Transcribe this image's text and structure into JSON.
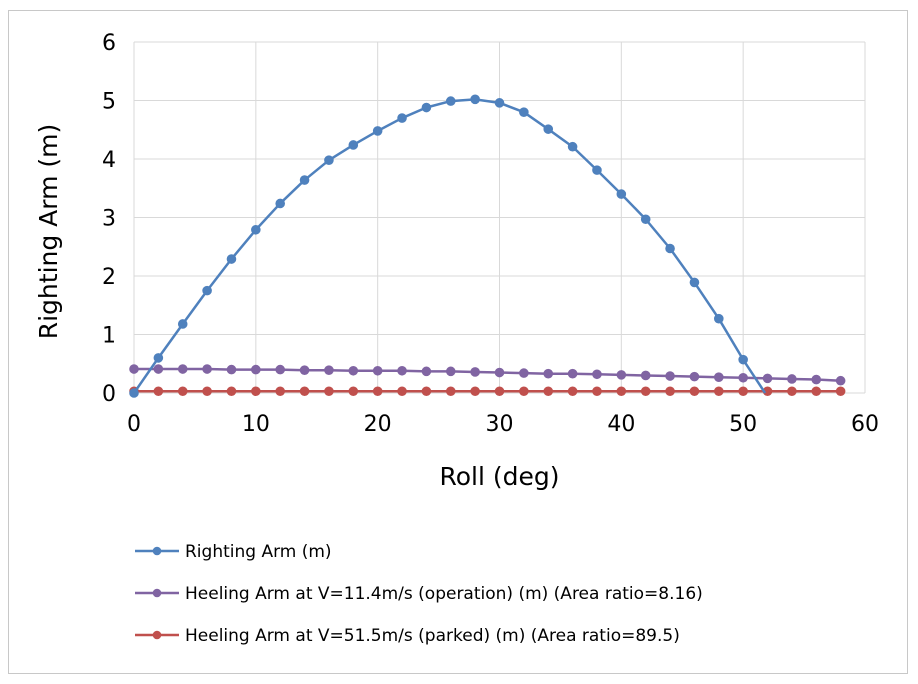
{
  "chart_data": {
    "type": "line",
    "title": "",
    "xlabel": "Roll (deg)",
    "ylabel": "Righting Arm (m)",
    "xlim": [
      0,
      60
    ],
    "ylim": [
      0,
      6
    ],
    "xticks": [
      0,
      10,
      20,
      30,
      40,
      50,
      60
    ],
    "yticks": [
      0,
      1,
      2,
      3,
      4,
      5,
      6
    ],
    "grid": true,
    "legend_position": "bottom",
    "series": [
      {
        "name": "Righting Arm (m)",
        "color": "#4f81bd",
        "x": [
          0,
          2,
          4,
          6,
          8,
          10,
          12,
          14,
          16,
          18,
          20,
          22,
          24,
          26,
          28,
          30,
          32,
          34,
          36,
          38,
          40,
          42,
          44,
          46,
          48,
          50,
          51.8
        ],
        "values": [
          0.0,
          0.6,
          1.18,
          1.75,
          2.29,
          2.79,
          3.24,
          3.64,
          3.98,
          4.24,
          4.48,
          4.7,
          4.88,
          4.99,
          5.02,
          4.96,
          4.8,
          4.51,
          4.21,
          3.81,
          3.4,
          2.97,
          2.47,
          1.89,
          1.27,
          0.57,
          0.0
        ],
        "markers": [
          true,
          true,
          true,
          true,
          true,
          true,
          true,
          true,
          true,
          true,
          true,
          true,
          true,
          true,
          true,
          true,
          true,
          true,
          true,
          true,
          true,
          true,
          true,
          true,
          true,
          true,
          false
        ]
      },
      {
        "name": "Heeling Arm at V=11.4m/s (operation) (m) (Area ratio=8.16)",
        "color": "#8064a2",
        "x": [
          0,
          2,
          4,
          6,
          8,
          10,
          12,
          14,
          16,
          18,
          20,
          22,
          24,
          26,
          28,
          30,
          32,
          34,
          36,
          38,
          40,
          42,
          44,
          46,
          48,
          50,
          52,
          54,
          56,
          58
        ],
        "values": [
          0.41,
          0.41,
          0.41,
          0.41,
          0.4,
          0.4,
          0.4,
          0.39,
          0.39,
          0.38,
          0.38,
          0.38,
          0.37,
          0.37,
          0.36,
          0.35,
          0.34,
          0.33,
          0.33,
          0.32,
          0.31,
          0.3,
          0.29,
          0.28,
          0.27,
          0.26,
          0.25,
          0.24,
          0.23,
          0.21
        ],
        "markers": true
      },
      {
        "name": "Heeling Arm at V=51.5m/s (parked) (m) (Area ratio=89.5)",
        "color": "#c0504d",
        "x": [
          0,
          2,
          4,
          6,
          8,
          10,
          12,
          14,
          16,
          18,
          20,
          22,
          24,
          26,
          28,
          30,
          32,
          34,
          36,
          38,
          40,
          42,
          44,
          46,
          48,
          50,
          52,
          54,
          56,
          58
        ],
        "values": [
          0.03,
          0.03,
          0.03,
          0.03,
          0.03,
          0.03,
          0.03,
          0.03,
          0.03,
          0.03,
          0.03,
          0.03,
          0.03,
          0.03,
          0.03,
          0.03,
          0.03,
          0.03,
          0.03,
          0.03,
          0.03,
          0.03,
          0.03,
          0.03,
          0.03,
          0.03,
          0.03,
          0.03,
          0.03,
          0.03
        ],
        "markers": true
      }
    ]
  }
}
